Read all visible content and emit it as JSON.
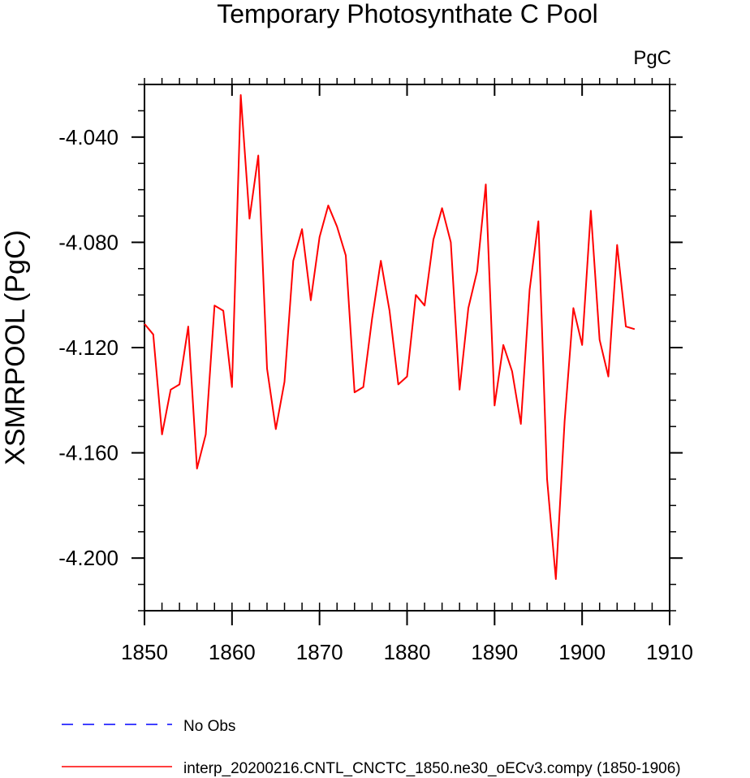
{
  "chart_data": {
    "type": "line",
    "title": "Temporary Photosynthate C Pool",
    "units_label": "PgC",
    "ylabel": "XSMRPOOL  (PgC)",
    "xlabel": "",
    "xlim": [
      1850,
      1910
    ],
    "ylim": [
      -4.22,
      -4.02
    ],
    "x_ticks": [
      1850,
      1860,
      1870,
      1880,
      1890,
      1900,
      1910
    ],
    "x_minor_step": 2,
    "y_ticks": [
      -4.04,
      -4.08,
      -4.12,
      -4.16,
      -4.2
    ],
    "y_tick_labels": [
      "-4.040",
      "-4.080",
      "-4.120",
      "-4.160",
      "-4.200"
    ],
    "y_minor_step": 0.01,
    "grid": false,
    "legend": {
      "placement": "bottom-left",
      "entries": [
        {
          "label": "No Obs",
          "color": "#0000ff",
          "style": "dashed"
        },
        {
          "label": "interp_20200216.CNTL_CNCTC_1850.ne30_oECv3.compy (1850-1906)",
          "color": "#ff0000",
          "style": "solid"
        }
      ]
    },
    "series": [
      {
        "color": "#ff0000",
        "x": [
          1850,
          1851,
          1852,
          1853,
          1854,
          1855,
          1856,
          1857,
          1858,
          1859,
          1860,
          1861,
          1862,
          1863,
          1864,
          1865,
          1866,
          1867,
          1868,
          1869,
          1870,
          1871,
          1872,
          1873,
          1874,
          1875,
          1876,
          1877,
          1878,
          1879,
          1880,
          1881,
          1882,
          1883,
          1884,
          1885,
          1886,
          1887,
          1888,
          1889,
          1890,
          1891,
          1892,
          1893,
          1894,
          1895,
          1896,
          1897,
          1898,
          1899,
          1900,
          1901,
          1902,
          1903,
          1904,
          1905,
          1906
        ],
        "values": [
          -4.111,
          -4.115,
          -4.153,
          -4.136,
          -4.134,
          -4.112,
          -4.166,
          -4.153,
          -4.104,
          -4.106,
          -4.135,
          -4.024,
          -4.071,
          -4.047,
          -4.128,
          -4.151,
          -4.133,
          -4.087,
          -4.075,
          -4.102,
          -4.078,
          -4.066,
          -4.074,
          -4.085,
          -4.137,
          -4.135,
          -4.109,
          -4.087,
          -4.106,
          -4.134,
          -4.131,
          -4.1,
          -4.104,
          -4.079,
          -4.067,
          -4.08,
          -4.136,
          -4.105,
          -4.091,
          -4.058,
          -4.142,
          -4.119,
          -4.129,
          -4.149,
          -4.098,
          -4.072,
          -4.17,
          -4.208,
          -4.148,
          -4.105,
          -4.119,
          -4.068,
          -4.117,
          -4.131,
          -4.081,
          -4.112,
          -4.113
        ]
      }
    ]
  }
}
